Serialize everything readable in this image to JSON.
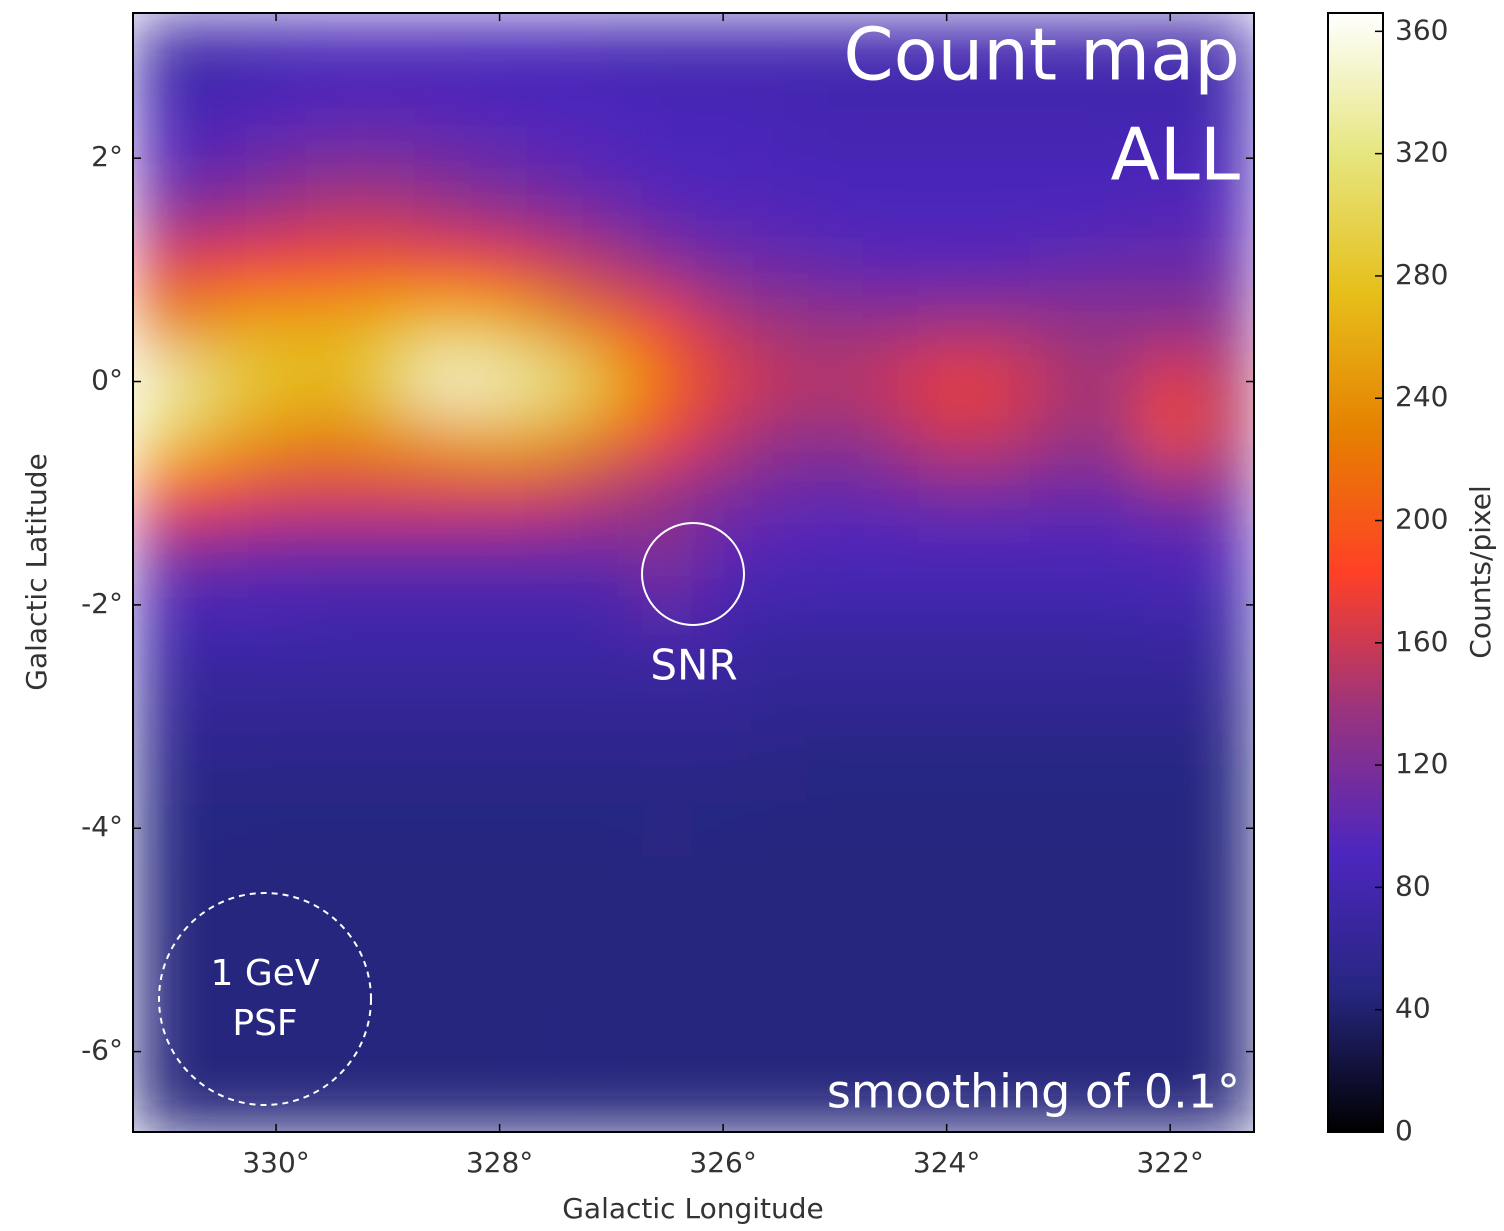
{
  "chart_data": {
    "type": "heatmap",
    "xlabel": "Galactic Longitude",
    "ylabel": "Galactic Latitude",
    "colorbar_label": "Counts/pixel",
    "annotations": [
      "Count map",
      "ALL",
      "SNR",
      "1 GeV",
      "PSF",
      "smoothing of 0.1°"
    ],
    "xlim": [
      331.28,
      321.25
    ],
    "ylim": [
      -6.72,
      3.3
    ],
    "clim": [
      0,
      366
    ],
    "xticks": [
      {
        "value": 330,
        "label": "330°"
      },
      {
        "value": 328,
        "label": "328°"
      },
      {
        "value": 326,
        "label": "326°"
      },
      {
        "value": 324,
        "label": "324°"
      },
      {
        "value": 322,
        "label": "322°"
      }
    ],
    "yticks": [
      {
        "value": 2,
        "label": "2°"
      },
      {
        "value": 0,
        "label": "0°"
      },
      {
        "value": -2,
        "label": "-2°"
      },
      {
        "value": -4,
        "label": "-4°"
      },
      {
        "value": -6,
        "label": "-6°"
      }
    ],
    "cticks": [
      0,
      40,
      80,
      120,
      160,
      200,
      240,
      280,
      320,
      360
    ],
    "colormap": [
      "#000000",
      "#262680",
      "#4d26bf",
      "#99337f",
      "#ff4026",
      "#e68000",
      "#e6bf1a",
      "#e6e680",
      "#ffffff"
    ],
    "x": [
      331.0,
      330.5,
      330.0,
      329.5,
      329.0,
      328.5,
      328.0,
      327.5,
      327.0,
      326.5,
      326.0,
      325.5,
      325.0,
      324.5,
      324.0,
      323.5,
      323.0,
      322.5,
      322.0,
      321.5
    ],
    "y": [
      3.0,
      2.5,
      2.0,
      1.5,
      1.0,
      0.5,
      0.0,
      -0.5,
      -1.0,
      -1.5,
      -2.0,
      -2.5,
      -3.0,
      -3.5,
      -4.0,
      -4.5,
      -5.0,
      -5.5,
      -6.0,
      -6.5
    ],
    "values": [
      [
        70,
        75,
        80,
        85,
        85,
        85,
        85,
        85,
        80,
        80,
        80,
        80,
        80,
        80,
        80,
        80,
        80,
        75,
        75,
        75
      ],
      [
        80,
        85,
        90,
        95,
        95,
        95,
        90,
        90,
        90,
        85,
        85,
        85,
        80,
        80,
        80,
        80,
        80,
        80,
        80,
        80
      ],
      [
        95,
        100,
        110,
        115,
        115,
        110,
        105,
        100,
        95,
        90,
        90,
        85,
        85,
        85,
        85,
        85,
        85,
        85,
        85,
        85
      ],
      [
        125,
        130,
        140,
        150,
        150,
        140,
        130,
        120,
        110,
        100,
        95,
        95,
        90,
        90,
        90,
        90,
        90,
        90,
        95,
        95
      ],
      [
        170,
        180,
        185,
        190,
        195,
        190,
        180,
        165,
        150,
        130,
        115,
        110,
        105,
        100,
        100,
        100,
        105,
        110,
        110,
        110
      ],
      [
        230,
        250,
        260,
        260,
        270,
        280,
        270,
        240,
        210,
        180,
        150,
        140,
        135,
        135,
        140,
        140,
        135,
        130,
        130,
        130
      ],
      [
        340,
        300,
        280,
        270,
        300,
        350,
        340,
        320,
        270,
        210,
        170,
        155,
        150,
        160,
        175,
        170,
        150,
        140,
        175,
        150
      ],
      [
        300,
        260,
        240,
        230,
        240,
        250,
        260,
        250,
        220,
        180,
        150,
        135,
        130,
        140,
        160,
        155,
        140,
        135,
        195,
        150
      ],
      [
        190,
        180,
        170,
        170,
        170,
        170,
        170,
        165,
        150,
        130,
        120,
        110,
        105,
        110,
        115,
        115,
        110,
        110,
        125,
        120
      ],
      [
        120,
        115,
        110,
        110,
        110,
        110,
        110,
        110,
        110,
        130,
        100,
        95,
        90,
        90,
        90,
        90,
        90,
        90,
        95,
        95
      ],
      [
        85,
        85,
        85,
        80,
        80,
        80,
        80,
        80,
        80,
        105,
        80,
        75,
        75,
        75,
        75,
        75,
        75,
        75,
        80,
        75
      ],
      [
        70,
        70,
        70,
        70,
        70,
        70,
        70,
        70,
        70,
        70,
        70,
        65,
        65,
        65,
        65,
        65,
        65,
        65,
        65,
        65
      ],
      [
        60,
        60,
        60,
        60,
        60,
        60,
        60,
        60,
        60,
        60,
        60,
        55,
        55,
        55,
        55,
        55,
        55,
        55,
        55,
        55
      ],
      [
        52,
        52,
        50,
        50,
        50,
        50,
        50,
        50,
        50,
        50,
        50,
        50,
        48,
        48,
        48,
        48,
        48,
        48,
        48,
        48
      ],
      [
        48,
        48,
        47,
        47,
        47,
        47,
        47,
        47,
        47,
        50,
        47,
        46,
        46,
        46,
        46,
        46,
        46,
        46,
        46,
        46
      ],
      [
        46,
        46,
        45,
        45,
        45,
        45,
        45,
        45,
        45,
        45,
        45,
        45,
        45,
        45,
        45,
        45,
        45,
        45,
        45,
        45
      ],
      [
        45,
        45,
        45,
        45,
        45,
        45,
        45,
        45,
        45,
        45,
        45,
        45,
        45,
        45,
        47,
        45,
        45,
        45,
        45,
        45
      ],
      [
        45,
        45,
        45,
        45,
        45,
        45,
        45,
        46,
        45,
        45,
        45,
        45,
        45,
        45,
        45,
        45,
        45,
        45,
        45,
        45
      ],
      [
        45,
        45,
        45,
        45,
        45,
        45,
        45,
        47,
        45,
        45,
        45,
        45,
        45,
        45,
        45,
        45,
        45,
        45,
        45,
        45
      ],
      [
        44,
        44,
        44,
        44,
        44,
        44,
        44,
        44,
        44,
        44,
        44,
        44,
        44,
        44,
        44,
        44,
        44,
        44,
        44,
        44
      ]
    ]
  }
}
